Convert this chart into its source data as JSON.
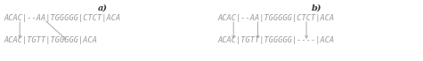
{
  "title_a": "a)",
  "title_b": "b)",
  "panel_a": {
    "line1": "ACAC|--AA|TGGGGG|CTCT|ACA",
    "line2": "ACAC|TGTT|TGGGGG|ACA"
  },
  "panel_b": {
    "line1": "ACAC|--AA|TGGGGG|CTCT|ACA",
    "line2": "ACAC|TGTT|TGGGGG|----|ACA"
  },
  "text_color": "#999999",
  "arrow_color": "#aaaaaa",
  "title_color": "#333333",
  "bg_color": "#ffffff",
  "font_size": 6.2,
  "title_fontsize": 7.0,
  "figsize": [
    4.75,
    0.69
  ],
  "dpi": 100
}
